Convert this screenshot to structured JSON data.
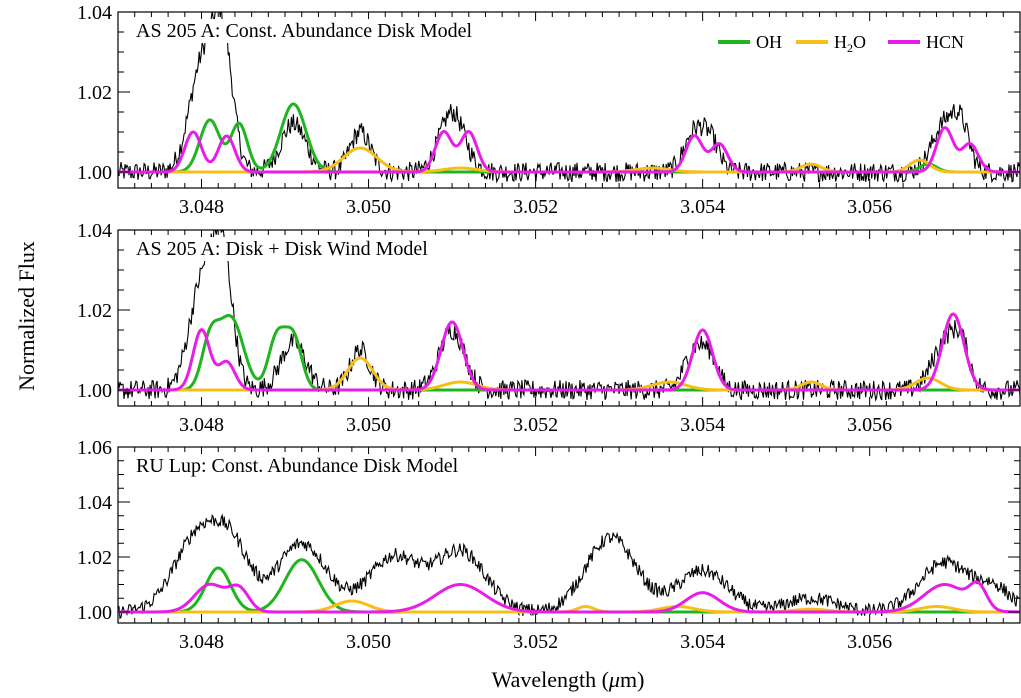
{
  "figure": {
    "ylabel": "Normalized Flux",
    "xlabel_main": "Wavelength (",
    "xlabel_mu": "μ",
    "xlabel_unit": "m)"
  },
  "legend": [
    {
      "label": "OH",
      "color": "#1fb51f"
    },
    {
      "label": "H2O",
      "label_main": "H",
      "label_sub": "2",
      "label_tail": "O",
      "color": "#f5bf18"
    },
    {
      "label": "HCN",
      "color": "#e81ee8"
    }
  ],
  "chart_data": [
    {
      "type": "line",
      "title": "AS 205 A:  Const. Abundance Disk Model",
      "xlim": [
        3.047,
        3.0578
      ],
      "ylim": [
        0.996,
        1.04
      ],
      "xticks": [
        3.048,
        3.05,
        3.052,
        3.054,
        3.056
      ],
      "xtick_labels": [
        "3.048",
        "3.050",
        "3.052",
        "3.054",
        "3.056"
      ],
      "yticks": [
        1.0,
        1.02,
        1.04
      ],
      "ytick_labels": [
        "1.00",
        "1.02",
        "1.04"
      ],
      "observed": {
        "noise": 0.0025,
        "peaks": [
          [
            3.048,
            0.026,
            0.00015
          ],
          [
            3.04825,
            0.033,
            0.00012
          ],
          [
            3.0491,
            0.012,
            0.00015
          ],
          [
            3.0499,
            0.01,
            0.00012
          ],
          [
            3.051,
            0.015,
            0.00015
          ],
          [
            3.0539,
            0.01,
            0.00012
          ],
          [
            3.0541,
            0.007,
            0.0001
          ],
          [
            3.0569,
            0.012,
            0.00015
          ],
          [
            3.0571,
            0.009,
            0.0001
          ]
        ]
      },
      "series": [
        {
          "name": "OH",
          "color": "#1fb51f",
          "peaks": [
            [
              3.0481,
              0.013,
              0.00012
            ],
            [
              3.04845,
              0.012,
              0.0001
            ],
            [
              3.0491,
              0.017,
              0.00015
            ],
            [
              3.0567,
              0.002,
              0.0001
            ]
          ]
        },
        {
          "name": "H2O",
          "color": "#f5bf18",
          "peaks": [
            [
              3.0499,
              0.006,
              0.0002
            ],
            [
              3.0511,
              0.001,
              0.0002
            ],
            [
              3.0534,
              0.001,
              0.0002
            ],
            [
              3.0553,
              0.002,
              0.00012
            ],
            [
              3.0566,
              0.003,
              0.00012
            ]
          ]
        },
        {
          "name": "HCN",
          "color": "#e81ee8",
          "peaks": [
            [
              3.0479,
              0.01,
              0.0001
            ],
            [
              3.0483,
              0.009,
              0.0001
            ],
            [
              3.0509,
              0.01,
              0.0001
            ],
            [
              3.0512,
              0.01,
              0.0001
            ],
            [
              3.0539,
              0.009,
              0.0001
            ],
            [
              3.0542,
              0.007,
              0.0001
            ],
            [
              3.0569,
              0.011,
              0.0001
            ],
            [
              3.0572,
              0.007,
              0.0001
            ]
          ]
        }
      ]
    },
    {
      "type": "line",
      "title": "AS 205 A:  Disk + Disk Wind Model",
      "xlim": [
        3.047,
        3.0578
      ],
      "ylim": [
        0.996,
        1.04
      ],
      "xticks": [
        3.048,
        3.05,
        3.052,
        3.054,
        3.056
      ],
      "xtick_labels": [
        "3.048",
        "3.050",
        "3.052",
        "3.054",
        "3.056"
      ],
      "yticks": [
        1.0,
        1.02,
        1.04
      ],
      "ytick_labels": [
        "1.00",
        "1.02",
        "1.04"
      ],
      "observed": {
        "noise": 0.0025,
        "peaks": [
          [
            3.048,
            0.026,
            0.00015
          ],
          [
            3.04825,
            0.033,
            0.00012
          ],
          [
            3.0491,
            0.012,
            0.00015
          ],
          [
            3.0499,
            0.01,
            0.00012
          ],
          [
            3.051,
            0.015,
            0.00015
          ],
          [
            3.0539,
            0.01,
            0.00012
          ],
          [
            3.0541,
            0.007,
            0.0001
          ],
          [
            3.0569,
            0.012,
            0.00015
          ],
          [
            3.0571,
            0.009,
            0.0001
          ]
        ]
      },
      "series": [
        {
          "name": "OH",
          "color": "#1fb51f",
          "peaks": [
            [
              3.0481,
              0.011,
              0.0001
            ],
            [
              3.04835,
              0.018,
              0.00015
            ],
            [
              3.0489,
              0.013,
              0.0001
            ],
            [
              3.0491,
              0.013,
              0.0001
            ]
          ]
        },
        {
          "name": "H2O",
          "color": "#f5bf18",
          "peaks": [
            [
              3.0499,
              0.008,
              0.00015
            ],
            [
              3.0511,
              0.002,
              0.0002
            ],
            [
              3.0536,
              0.002,
              0.0002
            ],
            [
              3.0553,
              0.002,
              0.00012
            ],
            [
              3.0567,
              0.003,
              0.00015
            ]
          ]
        },
        {
          "name": "HCN",
          "color": "#e81ee8",
          "peaks": [
            [
              3.048,
              0.015,
              0.0001
            ],
            [
              3.0483,
              0.007,
              0.0001
            ],
            [
              3.051,
              0.017,
              0.00013
            ],
            [
              3.054,
              0.015,
              0.00012
            ],
            [
              3.057,
              0.019,
              0.00013
            ]
          ]
        }
      ]
    },
    {
      "type": "line",
      "title": "RU Lup:  Const. Abundance Disk Model",
      "xlim": [
        3.047,
        3.0578
      ],
      "ylim": [
        0.996,
        1.06
      ],
      "xticks": [
        3.048,
        3.05,
        3.052,
        3.054,
        3.056
      ],
      "xtick_labels": [
        "3.048",
        "3.050",
        "3.052",
        "3.054",
        "3.056"
      ],
      "yticks": [
        1.0,
        1.02,
        1.04,
        1.06
      ],
      "ytick_labels": [
        "1.00",
        "1.02",
        "1.04",
        "1.06"
      ],
      "observed": {
        "noise": 0.0025,
        "peaks": [
          [
            3.048,
            0.03,
            0.0003
          ],
          [
            3.0484,
            0.015,
            0.0002
          ],
          [
            3.0492,
            0.025,
            0.0003
          ],
          [
            3.0503,
            0.02,
            0.0003
          ],
          [
            3.0511,
            0.022,
            0.0003
          ],
          [
            3.0529,
            0.027,
            0.0003
          ],
          [
            3.054,
            0.015,
            0.0003
          ],
          [
            3.0553,
            0.005,
            0.0003
          ],
          [
            3.0569,
            0.018,
            0.0003
          ],
          [
            3.0575,
            0.008,
            0.0002
          ]
        ]
      },
      "series": [
        {
          "name": "OH",
          "color": "#1fb51f",
          "peaks": [
            [
              3.0482,
              0.016,
              0.00015
            ],
            [
              3.0492,
              0.019,
              0.0002
            ]
          ]
        },
        {
          "name": "H2O",
          "color": "#f5bf18",
          "peaks": [
            [
              3.0498,
              0.004,
              0.0002
            ],
            [
              3.0526,
              0.002,
              0.0001
            ],
            [
              3.0537,
              0.002,
              0.0002
            ],
            [
              3.0553,
              0.001,
              0.0002
            ],
            [
              3.0568,
              0.002,
              0.0002
            ]
          ]
        },
        {
          "name": "HCN",
          "color": "#e81ee8",
          "peaks": [
            [
              3.0481,
              0.01,
              0.00018
            ],
            [
              3.04845,
              0.008,
              0.00012
            ],
            [
              3.0511,
              0.01,
              0.0003
            ],
            [
              3.054,
              0.007,
              0.0002
            ],
            [
              3.0569,
              0.01,
              0.00025
            ],
            [
              3.0573,
              0.008,
              0.0001
            ]
          ]
        }
      ]
    }
  ]
}
